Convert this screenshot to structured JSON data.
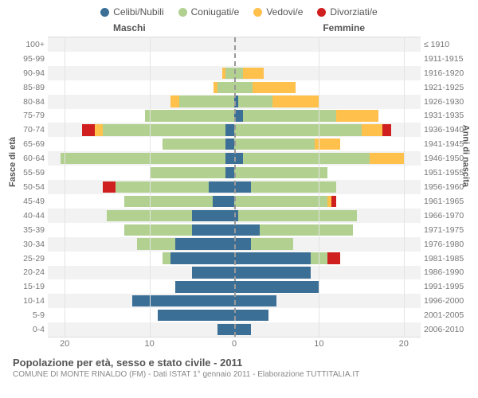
{
  "legend": [
    {
      "label": "Celibi/Nubili",
      "color": "#3b6f96"
    },
    {
      "label": "Coniugati/e",
      "color": "#b2d191"
    },
    {
      "label": "Vedovi/e",
      "color": "#ffc04c"
    },
    {
      "label": "Divorziati/e",
      "color": "#d01f1f"
    }
  ],
  "gender": {
    "male": "Maschi",
    "female": "Femmine"
  },
  "axis": {
    "y_left_title": "Fasce di età",
    "y_right_title": "Anni di nascita",
    "x_max": 22,
    "x_ticks": [
      -20,
      -10,
      0,
      10,
      20
    ],
    "x_tick_labels": [
      "20",
      "10",
      "0",
      "10",
      "20"
    ]
  },
  "colors": {
    "bg_odd": "#f2f2f2",
    "bg_even": "#ffffff",
    "grid": "#e3e3e3",
    "center": "#999999",
    "text": "#555555",
    "subtext": "#888888"
  },
  "footer": {
    "title": "Popolazione per età, sesso e stato civile - 2011",
    "subtitle": "COMUNE DI MONTE RINALDO (FM) - Dati ISTAT 1° gennaio 2011 - Elaborazione TUTTITALIA.IT"
  },
  "rows": [
    {
      "age": "100+",
      "year": "≤ 1910",
      "m": [
        0,
        0,
        0,
        0
      ],
      "f": [
        0,
        0,
        0,
        0
      ]
    },
    {
      "age": "95-99",
      "year": "1911-1915",
      "m": [
        0,
        0,
        0,
        0
      ],
      "f": [
        0,
        0,
        0,
        0
      ]
    },
    {
      "age": "90-94",
      "year": "1916-1920",
      "m": [
        0,
        1,
        0.4,
        0
      ],
      "f": [
        0,
        1,
        2.5,
        0
      ]
    },
    {
      "age": "85-89",
      "year": "1921-1925",
      "m": [
        0,
        2,
        0.4,
        0
      ],
      "f": [
        0,
        2.2,
        5,
        0
      ]
    },
    {
      "age": "80-84",
      "year": "1926-1930",
      "m": [
        0,
        6.5,
        1,
        0
      ],
      "f": [
        0.5,
        4,
        5.5,
        0
      ]
    },
    {
      "age": "75-79",
      "year": "1931-1935",
      "m": [
        0,
        10.5,
        0,
        0
      ],
      "f": [
        1,
        11,
        5,
        0
      ]
    },
    {
      "age": "70-74",
      "year": "1936-1940",
      "m": [
        1,
        14.5,
        1,
        1.5
      ],
      "f": [
        0,
        15,
        2.5,
        1
      ]
    },
    {
      "age": "65-69",
      "year": "1941-1945",
      "m": [
        1,
        7.5,
        0,
        0
      ],
      "f": [
        0,
        9.5,
        3,
        0
      ]
    },
    {
      "age": "60-64",
      "year": "1946-1950",
      "m": [
        1,
        19.5,
        0,
        0
      ],
      "f": [
        1,
        15,
        4,
        0
      ]
    },
    {
      "age": "55-59",
      "year": "1951-1955",
      "m": [
        1,
        9,
        0,
        0
      ],
      "f": [
        0,
        11,
        0,
        0
      ]
    },
    {
      "age": "50-54",
      "year": "1956-1960",
      "m": [
        3,
        11,
        0,
        1.5
      ],
      "f": [
        2,
        10,
        0,
        0
      ]
    },
    {
      "age": "45-49",
      "year": "1961-1965",
      "m": [
        2.5,
        10.5,
        0,
        0
      ],
      "f": [
        0,
        11,
        0.5,
        0.5
      ]
    },
    {
      "age": "40-44",
      "year": "1966-1970",
      "m": [
        5,
        10,
        0,
        0
      ],
      "f": [
        0.5,
        14,
        0,
        0
      ]
    },
    {
      "age": "35-39",
      "year": "1971-1975",
      "m": [
        5,
        8,
        0,
        0
      ],
      "f": [
        3,
        11,
        0,
        0
      ]
    },
    {
      "age": "30-34",
      "year": "1976-1980",
      "m": [
        7,
        4.5,
        0,
        0
      ],
      "f": [
        2,
        5,
        0,
        0
      ]
    },
    {
      "age": "25-29",
      "year": "1981-1985",
      "m": [
        7.5,
        1,
        0,
        0
      ],
      "f": [
        9,
        2,
        0,
        1.5
      ]
    },
    {
      "age": "20-24",
      "year": "1986-1990",
      "m": [
        5,
        0,
        0,
        0
      ],
      "f": [
        9,
        0,
        0,
        0
      ]
    },
    {
      "age": "15-19",
      "year": "1991-1995",
      "m": [
        7,
        0,
        0,
        0
      ],
      "f": [
        10,
        0,
        0,
        0
      ]
    },
    {
      "age": "10-14",
      "year": "1996-2000",
      "m": [
        12,
        0,
        0,
        0
      ],
      "f": [
        5,
        0,
        0,
        0
      ]
    },
    {
      "age": "5-9",
      "year": "2001-2005",
      "m": [
        9,
        0,
        0,
        0
      ],
      "f": [
        4,
        0,
        0,
        0
      ]
    },
    {
      "age": "0-4",
      "year": "2006-2010",
      "m": [
        2,
        0,
        0,
        0
      ],
      "f": [
        2,
        0,
        0,
        0
      ]
    }
  ]
}
